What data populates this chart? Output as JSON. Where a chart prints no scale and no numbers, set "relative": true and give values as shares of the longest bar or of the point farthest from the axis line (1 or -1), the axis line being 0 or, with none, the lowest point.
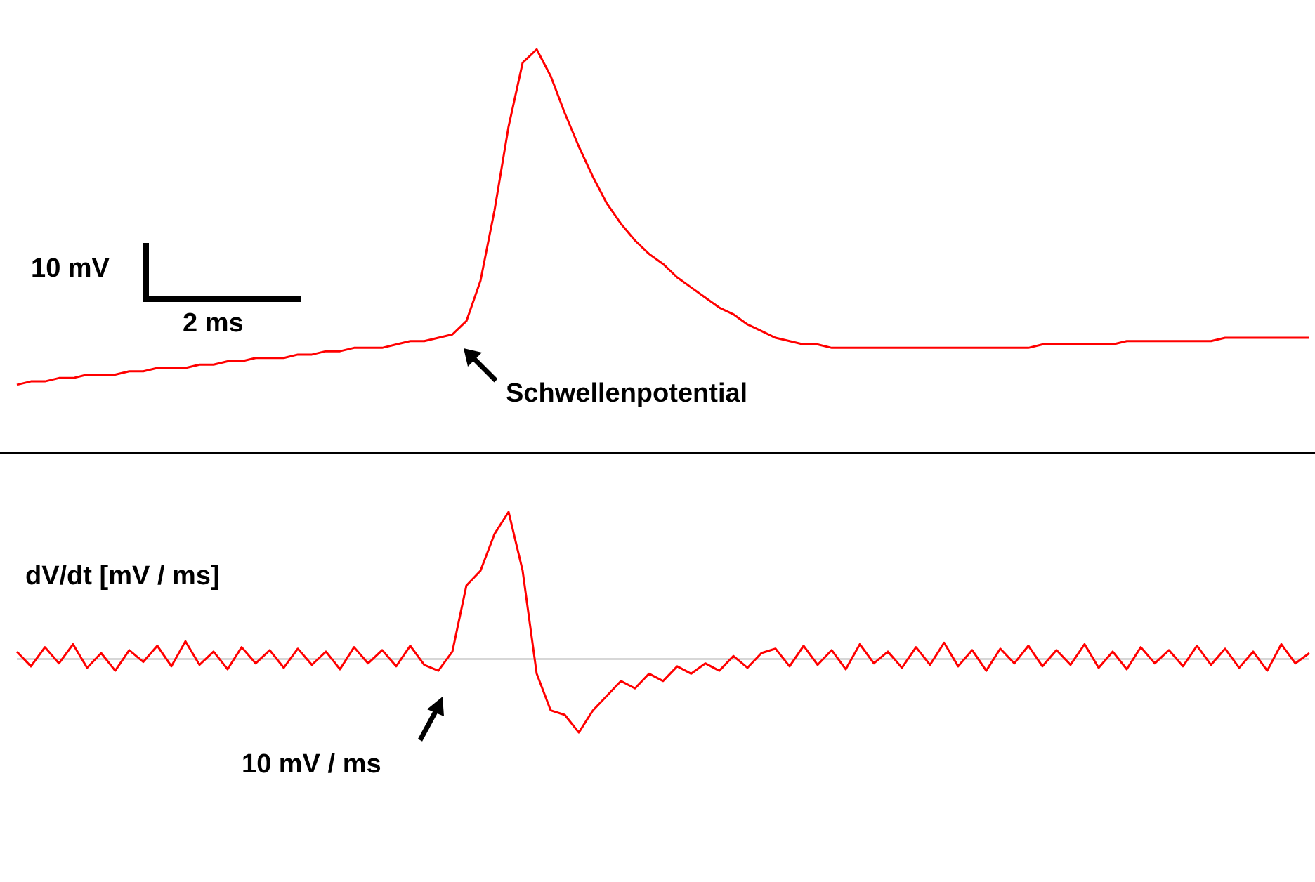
{
  "chart_data": [
    {
      "type": "line",
      "relative": true,
      "marker": "none",
      "categories": [
        null,
        null,
        null,
        null,
        null,
        null,
        null,
        null,
        null,
        null,
        null,
        null,
        null,
        null,
        null,
        null,
        null,
        null,
        null,
        null,
        null,
        null,
        null,
        null,
        null,
        null,
        null,
        null,
        null,
        null,
        null,
        null,
        null,
        null,
        null,
        null,
        null,
        null,
        null,
        null,
        null,
        null,
        null,
        null,
        null,
        null,
        null,
        null,
        null,
        null,
        null,
        null,
        null,
        null,
        null,
        null,
        null,
        null,
        null,
        null,
        null,
        null,
        null,
        null,
        null,
        null,
        null,
        null,
        null,
        null,
        null,
        null,
        null,
        null,
        null,
        null,
        null,
        null,
        null,
        null,
        null,
        null,
        null,
        null,
        null,
        null,
        null,
        null,
        null,
        null,
        null,
        null,
        null
      ],
      "series": [
        {
          "color": "#ff0000",
          "values": [
            0,
            0.01,
            0.01,
            0.02,
            0.02,
            0.03,
            0.03,
            0.03,
            0.04,
            0.04,
            0.05,
            0.05,
            0.05,
            0.06,
            0.06,
            0.07,
            0.07,
            0.08,
            0.08,
            0.08,
            0.09,
            0.09,
            0.1,
            0.1,
            0.11,
            0.11,
            0.11,
            0.12,
            0.13,
            0.13,
            0.14,
            0.15,
            0.19,
            0.31,
            0.52,
            0.77,
            0.96,
            1,
            0.92,
            0.81,
            0.71,
            0.62,
            0.54,
            0.48,
            0.43,
            0.39,
            0.36,
            0.32,
            0.29,
            0.26,
            0.23,
            0.21,
            0.18,
            0.16,
            0.14,
            0.13,
            0.12,
            0.12,
            0.11,
            0.11,
            0.11,
            0.11,
            0.11,
            0.11,
            0.11,
            0.11,
            0.11,
            0.11,
            0.11,
            0.11,
            0.11,
            0.11,
            0.11,
            0.12,
            0.12,
            0.12,
            0.12,
            0.12,
            0.12,
            0.13,
            0.13,
            0.13,
            0.13,
            0.13,
            0.13,
            0.13,
            0.14,
            0.14,
            0.14,
            0.14,
            0.14,
            0.14,
            0.14
          ]
        }
      ],
      "annotations": [
        "10 mV",
        "2 ms",
        "Schwellenpotential"
      ]
    },
    {
      "type": "line",
      "relative": true,
      "marker": "none",
      "categories": [
        null,
        null,
        null,
        null,
        null,
        null,
        null,
        null,
        null,
        null,
        null,
        null,
        null,
        null,
        null,
        null,
        null,
        null,
        null,
        null,
        null,
        null,
        null,
        null,
        null,
        null,
        null,
        null,
        null,
        null,
        null,
        null,
        null,
        null,
        null,
        null,
        null,
        null,
        null,
        null,
        null,
        null,
        null,
        null,
        null,
        null,
        null,
        null,
        null,
        null,
        null,
        null,
        null,
        null,
        null,
        null,
        null,
        null,
        null,
        null,
        null,
        null,
        null,
        null,
        null,
        null,
        null,
        null,
        null,
        null,
        null,
        null,
        null,
        null,
        null,
        null,
        null,
        null,
        null,
        null,
        null,
        null,
        null,
        null,
        null,
        null,
        null,
        null,
        null,
        null,
        null,
        null,
        null
      ],
      "series": [
        {
          "color": "#ff0000",
          "values": [
            0.05,
            -0.05,
            0.08,
            -0.03,
            0.1,
            -0.06,
            0.04,
            -0.08,
            0.06,
            -0.02,
            0.09,
            -0.05,
            0.12,
            -0.04,
            0.05,
            -0.07,
            0.08,
            -0.03,
            0.06,
            -0.06,
            0.07,
            -0.04,
            0.05,
            -0.07,
            0.08,
            -0.03,
            0.06,
            -0.05,
            0.09,
            -0.04,
            -0.08,
            0.05,
            0.5,
            0.6,
            0.85,
            1,
            0.6,
            -0.1,
            -0.35,
            -0.38,
            -0.5,
            -0.35,
            -0.25,
            -0.15,
            -0.2,
            -0.1,
            -0.15,
            -0.05,
            -0.1,
            -0.03,
            -0.08,
            0.02,
            -0.06,
            0.04,
            0.07,
            -0.05,
            0.09,
            -0.04,
            0.06,
            -0.07,
            0.1,
            -0.03,
            0.05,
            -0.06,
            0.08,
            -0.04,
            0.11,
            -0.05,
            0.06,
            -0.08,
            0.07,
            -0.03,
            0.09,
            -0.05,
            0.06,
            -0.04,
            0.1,
            -0.06,
            0.05,
            -0.07,
            0.08,
            -0.03,
            0.06,
            -0.05,
            0.09,
            -0.04,
            0.07,
            -0.06,
            0.05,
            -0.08,
            0.1,
            -0.03,
            0.04
          ]
        }
      ],
      "ref_lines": [
        {
          "axis": "y",
          "value": 0,
          "color": "#b0b0b0"
        }
      ],
      "annotations": [
        "dV/dt [mV / ms]",
        "10 mV / ms"
      ]
    }
  ]
}
